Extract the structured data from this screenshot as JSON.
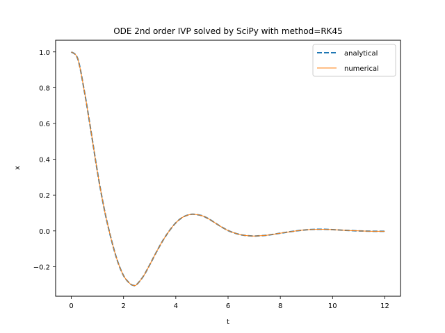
{
  "chart_data": {
    "type": "line",
    "title": "ODE 2nd order IVP solved by SciPy with method=RK45",
    "xlabel": "t",
    "ylabel": "x",
    "xlim": [
      -0.6,
      12.6
    ],
    "ylim": [
      -0.365,
      1.065
    ],
    "xticks": [
      0,
      2,
      4,
      6,
      8,
      10,
      12
    ],
    "xtick_labels": [
      "0",
      "2",
      "4",
      "6",
      "8",
      "10",
      "12"
    ],
    "yticks": [
      -0.2,
      0.0,
      0.2,
      0.4,
      0.6,
      0.8,
      1.0
    ],
    "ytick_labels": [
      "−0.2",
      "0.0",
      "0.2",
      "0.4",
      "0.6",
      "0.8",
      "1.0"
    ],
    "grid": false,
    "legend_position": "top-right",
    "series": [
      {
        "name": "analytical",
        "color": "#1f77b4",
        "style": "dashed",
        "x": [
          0,
          0.25,
          0.5,
          0.75,
          1.0,
          1.25,
          1.5,
          1.75,
          2.0,
          2.25,
          2.4,
          2.5,
          2.75,
          3.0,
          3.25,
          3.5,
          3.75,
          4.0,
          4.25,
          4.5,
          4.7,
          5.0,
          5.25,
          5.5,
          5.75,
          6.0,
          6.25,
          6.5,
          6.75,
          7.0,
          7.25,
          7.5,
          8.0,
          8.5,
          9.0,
          9.5,
          10.0,
          10.5,
          11.0,
          11.5,
          12.0
        ],
        "y": [
          1.0,
          0.96,
          0.78,
          0.56,
          0.33,
          0.13,
          -0.03,
          -0.16,
          -0.25,
          -0.295,
          -0.305,
          -0.3,
          -0.255,
          -0.19,
          -0.12,
          -0.055,
          0.0,
          0.045,
          0.075,
          0.09,
          0.093,
          0.085,
          0.068,
          0.045,
          0.022,
          0.002,
          -0.012,
          -0.022,
          -0.027,
          -0.029,
          -0.027,
          -0.024,
          -0.013,
          -0.002,
          0.006,
          0.009,
          0.007,
          0.003,
          0.0,
          -0.002,
          -0.002
        ]
      },
      {
        "name": "numerical",
        "color": "#ff7f0e",
        "style": "solid",
        "x": [
          0,
          0.25,
          0.5,
          0.75,
          1.0,
          1.25,
          1.5,
          1.75,
          2.0,
          2.25,
          2.4,
          2.5,
          2.75,
          3.0,
          3.25,
          3.5,
          3.75,
          4.0,
          4.25,
          4.5,
          4.7,
          5.0,
          5.25,
          5.5,
          5.75,
          6.0,
          6.25,
          6.5,
          6.75,
          7.0,
          7.25,
          7.5,
          8.0,
          8.5,
          9.0,
          9.5,
          10.0,
          10.5,
          11.0,
          11.5,
          12.0
        ],
        "y": [
          1.0,
          0.96,
          0.78,
          0.56,
          0.33,
          0.13,
          -0.03,
          -0.16,
          -0.25,
          -0.295,
          -0.305,
          -0.3,
          -0.255,
          -0.19,
          -0.12,
          -0.055,
          0.0,
          0.045,
          0.075,
          0.09,
          0.093,
          0.085,
          0.068,
          0.045,
          0.022,
          0.002,
          -0.012,
          -0.022,
          -0.027,
          -0.029,
          -0.027,
          -0.024,
          -0.013,
          -0.002,
          0.006,
          0.009,
          0.007,
          0.003,
          0.0,
          -0.002,
          -0.002
        ]
      }
    ]
  }
}
